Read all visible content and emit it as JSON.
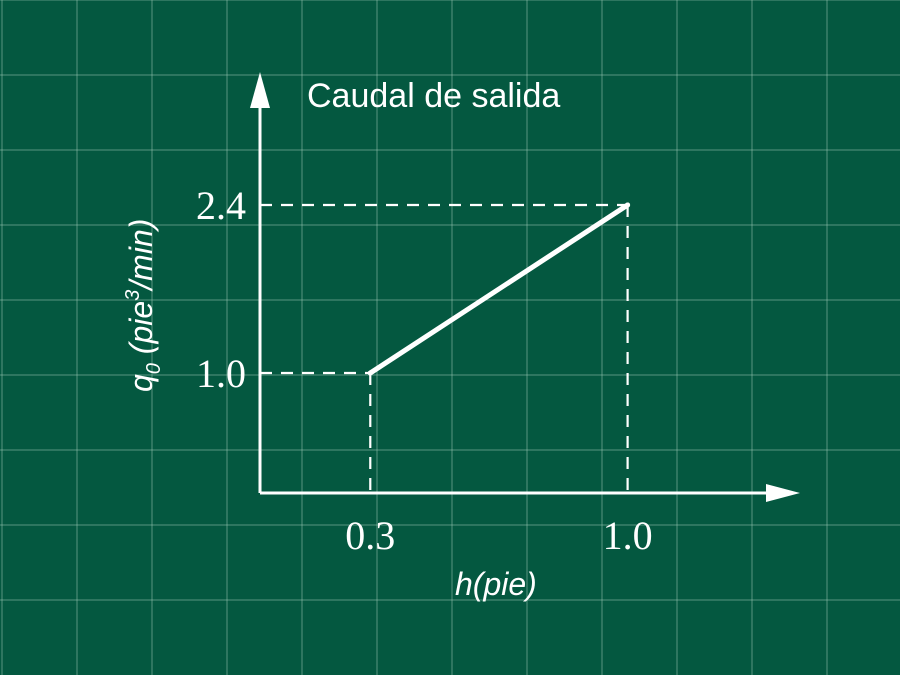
{
  "chart_data": {
    "type": "line",
    "title": "Caudal de salida",
    "xlabel": "h(pie)",
    "ylabel": {
      "symbol": "q",
      "subscript": "0",
      "unit_open": " (pie",
      "unit_exp": "3",
      "unit_close": "/min)"
    },
    "series": [
      {
        "x": [
          0.3,
          1.0
        ],
        "y": [
          1.0,
          2.4
        ]
      }
    ],
    "x_ticks": [
      {
        "value": 0.3,
        "label": "0.3"
      },
      {
        "value": 1.0,
        "label": "1.0"
      }
    ],
    "y_ticks": [
      {
        "value": 1.0,
        "label": "1.0"
      },
      {
        "value": 2.4,
        "label": "2.4"
      }
    ],
    "xlim": [
      0,
      1.42
    ],
    "ylim": [
      0,
      3.5
    ],
    "grid": true,
    "guides": "dashed"
  },
  "colors": {
    "background": "#045840",
    "foreground": "#ffffff"
  }
}
